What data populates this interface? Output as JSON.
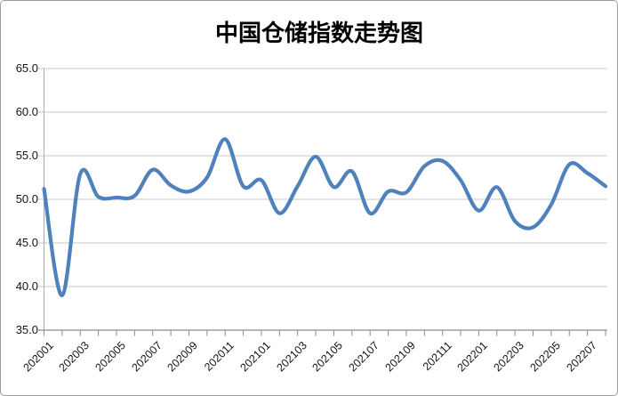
{
  "chart_data": {
    "type": "line",
    "title": "中国仓储指数走势图",
    "x": [
      "202001",
      "202002",
      "202003",
      "202004",
      "202005",
      "202006",
      "202007",
      "202008",
      "202009",
      "202010",
      "202011",
      "202012",
      "202101",
      "202102",
      "202103",
      "202104",
      "202105",
      "202106",
      "202107",
      "202108",
      "202109",
      "202110",
      "202111",
      "202112",
      "202201",
      "202202",
      "202203",
      "202204",
      "202205",
      "202206",
      "202207",
      "202208"
    ],
    "values": [
      51.2,
      39.0,
      52.9,
      50.3,
      50.2,
      50.4,
      53.4,
      51.6,
      50.9,
      52.5,
      56.9,
      51.5,
      52.2,
      48.4,
      51.5,
      54.9,
      51.4,
      53.2,
      48.4,
      50.9,
      50.8,
      53.8,
      54.4,
      52.2,
      48.7,
      51.4,
      47.5,
      46.8,
      49.4,
      54.0,
      53.0,
      51.5
    ],
    "x_tick_labels": [
      "202001",
      "202003",
      "202005",
      "202007",
      "202009",
      "202011",
      "202101",
      "202103",
      "202105",
      "202107",
      "202109",
      "202111",
      "202201",
      "202203",
      "202205",
      "202207"
    ],
    "y_tick_labels": [
      "65.0",
      "60.0",
      "55.0",
      "50.0",
      "45.0",
      "40.0",
      "35.0"
    ],
    "ylim": [
      35.0,
      65.0
    ],
    "y_step": 5.0,
    "xlabel": "",
    "ylabel": "",
    "grid": "horizontal",
    "legend": "none",
    "smooth_line": true
  },
  "colors": {
    "line": "#4F81BD",
    "gridline": "#c8c8c8",
    "axis": "#8c8c8c",
    "y_axis": "#a9a9a9",
    "border": "#9b9b9b",
    "background": "#ffffff",
    "text": "#141414"
  }
}
